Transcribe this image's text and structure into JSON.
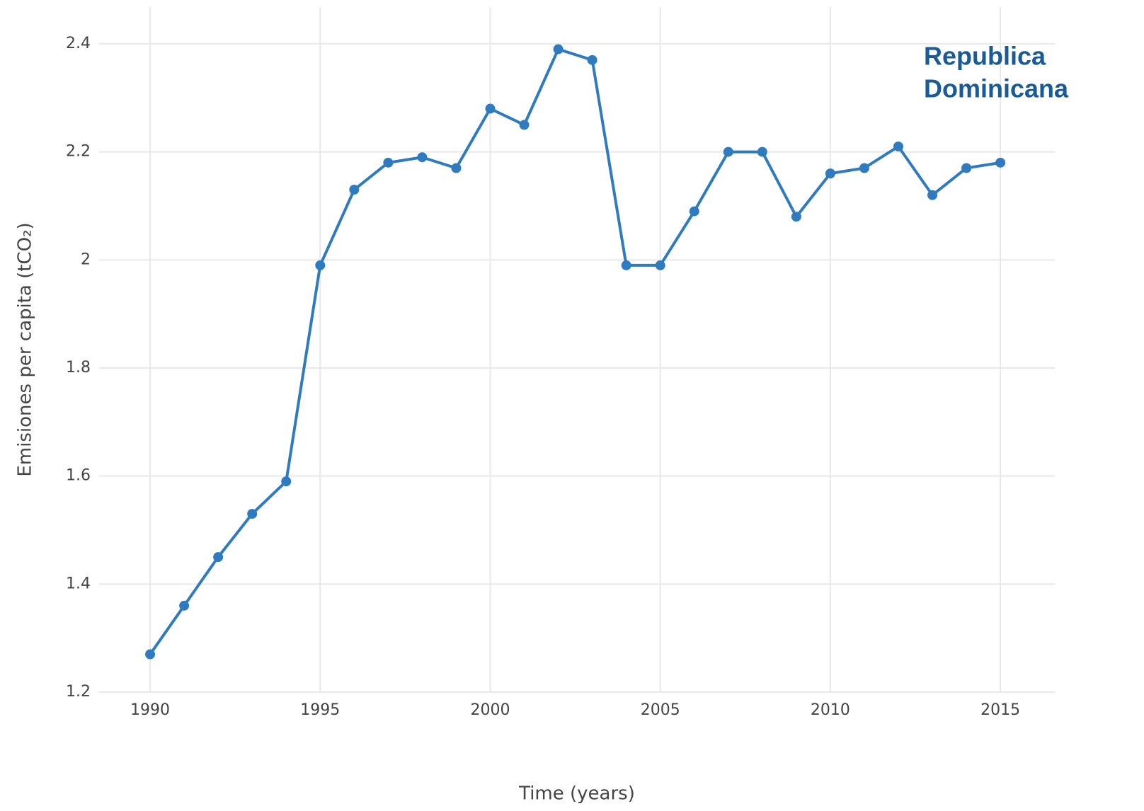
{
  "chart_data": {
    "type": "line",
    "x_label": "Time (years)",
    "y_label": "Emisiones per capita (tCO₂)",
    "annotation": [
      "Republica",
      "Dominicana"
    ],
    "x": [
      1990,
      1991,
      1992,
      1993,
      1994,
      1995,
      1996,
      1997,
      1998,
      1999,
      2000,
      2001,
      2002,
      2003,
      2004,
      2005,
      2006,
      2007,
      2008,
      2009,
      2010,
      2011,
      2012,
      2013,
      2014,
      2015
    ],
    "series": [
      {
        "color": "#2e7bbf",
        "values": [
          1.27,
          1.36,
          1.45,
          1.53,
          1.59,
          1.99,
          2.13,
          2.18,
          2.19,
          2.17,
          2.28,
          2.25,
          2.39,
          2.37,
          1.99,
          1.99,
          2.09,
          2.2,
          2.2,
          2.08,
          2.16,
          2.17,
          2.21,
          2.12,
          2.17,
          2.18
        ]
      }
    ],
    "xlim": [
      1988.5,
      2016.6
    ],
    "xticks": [
      1990,
      1995,
      2000,
      2005,
      2010,
      2015
    ],
    "ylim": [
      1.2,
      2.468
    ],
    "yticks": [
      1.2,
      1.4,
      1.6,
      1.8,
      2,
      2.2,
      2.4
    ],
    "grid": true,
    "annotation_color": "#1a5a96"
  }
}
